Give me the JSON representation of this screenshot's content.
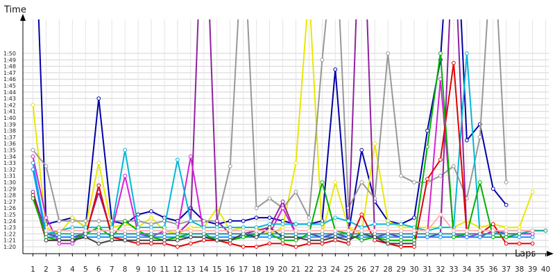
{
  "chart_data": {
    "type": "line",
    "title": "",
    "xlabel": "Laps",
    "ylabel": "Time",
    "x": [
      1,
      2,
      3,
      4,
      5,
      6,
      7,
      8,
      9,
      10,
      11,
      12,
      13,
      14,
      15,
      16,
      17,
      18,
      19,
      20,
      21,
      22,
      23,
      24,
      25,
      26,
      27,
      28,
      29,
      30,
      31,
      32,
      33,
      34,
      35,
      36,
      37,
      38,
      39,
      40
    ],
    "x_tick_labels": [
      "1",
      "2",
      "3",
      "4",
      "5",
      "6",
      "7",
      "8",
      "9",
      "10",
      "11",
      "12",
      "13",
      "14",
      "15",
      "16",
      "17",
      "18",
      "19",
      "20",
      "21",
      "22",
      "23",
      "24",
      "25",
      "26",
      "27",
      "28",
      "29",
      "30",
      "31",
      "32",
      "33",
      "34",
      "35",
      "36",
      "37",
      "38",
      "39",
      "40"
    ],
    "y_tick_labels": [
      "1:20",
      "1:21",
      "1:22",
      "1:23",
      "1:24",
      "1:25",
      "1:26",
      "1:27",
      "1:28",
      "1:29",
      "1:30",
      "1:31",
      "1:32",
      "1:33",
      "1:34",
      "1:35",
      "1:36",
      "1:37",
      "1:38",
      "1:39",
      "1:40",
      "1:41",
      "1:42",
      "1:43",
      "1:44",
      "1:45",
      "1:46",
      "1:47",
      "1:48",
      "1:49",
      "1:50"
    ],
    "y_tick_values": [
      80,
      81,
      82,
      83,
      84,
      85,
      86,
      87,
      88,
      89,
      90,
      91,
      92,
      93,
      94,
      95,
      96,
      97,
      98,
      99,
      100,
      101,
      102,
      103,
      104,
      105,
      106,
      107,
      108,
      109,
      110
    ],
    "xlim": [
      1,
      40
    ],
    "ylim": [
      78.5,
      113
    ],
    "grid": true,
    "series": [
      {
        "color": "#0000a8",
        "values": [
          140,
          83.5,
          84,
          84.5,
          83,
          103,
          84,
          83.5,
          85,
          85.5,
          84.5,
          84,
          86,
          84,
          83.5,
          84,
          84,
          84.5,
          84.5,
          84,
          83.5,
          83.5,
          84,
          107.5,
          82,
          95,
          87,
          84,
          83.5,
          84.5,
          98,
          109,
          140,
          96.5,
          99,
          89,
          86.5,
          null,
          null,
          null
        ]
      },
      {
        "color": "#e8e800",
        "values": [
          102,
          83,
          82,
          84.5,
          83,
          93,
          83,
          83.5,
          83,
          84.5,
          82.5,
          82,
          83,
          83,
          86,
          82.5,
          83,
          83,
          82,
          83,
          93,
          120,
          82,
          90,
          83,
          82,
          96,
          84,
          83,
          83,
          83,
          83,
          83,
          84,
          83,
          83.5,
          83,
          83,
          88.5,
          null
        ]
      },
      {
        "color": "#989898",
        "values": [
          95,
          92.5,
          84,
          84,
          84,
          84,
          84,
          84,
          84,
          83.5,
          84,
          83.5,
          84,
          84,
          84,
          92.5,
          130,
          86,
          87.5,
          86,
          88.5,
          84.5,
          109,
          130,
          86,
          90,
          87.5,
          110,
          91,
          90,
          90,
          91,
          92.5,
          87.5,
          97,
          130,
          90,
          null,
          null,
          null
        ]
      },
      {
        "color": "#9020a0",
        "values": [
          88.5,
          82,
          81.5,
          81.5,
          82,
          88.5,
          82,
          82,
          82,
          82,
          82,
          82,
          84,
          140,
          84,
          82,
          82,
          82.5,
          83,
          87,
          82,
          82,
          81.5,
          82,
          81.5,
          140,
          81.5,
          82,
          81.5,
          81.5,
          81.5,
          82,
          130,
          81.5,
          81.5,
          82.5,
          82,
          82,
          82,
          null
        ]
      },
      {
        "color": "#d820d8",
        "values": [
          94,
          84.5,
          80.5,
          80.5,
          82.5,
          82.5,
          82.5,
          91,
          82,
          81.5,
          82.5,
          82.5,
          94,
          82,
          82,
          82,
          82,
          82,
          82,
          86,
          82,
          82,
          82,
          82,
          82,
          82,
          82,
          82,
          82,
          82,
          82,
          106,
          82,
          81.5,
          82,
          82,
          82,
          82,
          82,
          null
        ]
      },
      {
        "color": "#00b8d8",
        "values": [
          93,
          82,
          82.5,
          83,
          83,
          83,
          83,
          95,
          83,
          83,
          83,
          93.5,
          84,
          83,
          83,
          83,
          83,
          83,
          83.5,
          83.5,
          83.5,
          83.5,
          83.5,
          84.5,
          84,
          83,
          83.5,
          83.5,
          83.5,
          83,
          82.5,
          83,
          83,
          110,
          82,
          82,
          82.5,
          82.5,
          82.5,
          null
        ]
      },
      {
        "color": "#1090ff",
        "values": [
          92,
          81.5,
          81.5,
          81.5,
          81.5,
          81.5,
          81.5,
          81.5,
          81.5,
          81.5,
          81.5,
          81.5,
          81.5,
          81.5,
          81.5,
          81.5,
          81.5,
          81.5,
          81.5,
          81.5,
          81.5,
          81.5,
          81.5,
          81.5,
          81.5,
          81.5,
          81.5,
          81.5,
          81.5,
          81.5,
          81.5,
          81.5,
          81.5,
          81.5,
          81.5,
          81.5,
          81.5,
          81.5,
          81.5,
          null
        ]
      },
      {
        "color": "#e00000",
        "values": [
          88,
          81,
          81,
          81,
          81.5,
          89.5,
          81.5,
          81,
          80.5,
          80.5,
          80.5,
          80,
          80.5,
          81,
          81,
          80.5,
          80,
          80,
          80.5,
          80.5,
          80,
          80.5,
          80.5,
          81,
          80.5,
          85,
          81,
          80.5,
          80,
          80,
          90.5,
          93.5,
          108.5,
          82,
          82,
          83.5,
          80.5,
          80.5,
          80.5,
          null
        ]
      },
      {
        "color": "#00b000",
        "values": [
          87.5,
          81.5,
          81,
          81,
          82,
          83,
          81.5,
          84,
          82.5,
          81.5,
          81,
          81.5,
          82,
          82,
          81,
          81,
          81.5,
          82,
          82,
          81,
          81,
          82,
          90,
          82.5,
          82,
          81,
          81.5,
          81,
          81,
          81,
          95.5,
          110,
          81.5,
          82,
          90,
          81.5,
          81.5,
          82,
          82.5,
          82.5
        ]
      },
      {
        "color": "#404040",
        "values": [
          null,
          81,
          81,
          81,
          81.5,
          80.5,
          81,
          81,
          81,
          81,
          81,
          81,
          81.5,
          81.5,
          81,
          81,
          82,
          81.5,
          83,
          81.5,
          81.5,
          81,
          81,
          81.5,
          81,
          82,
          81.5,
          80.5,
          80.5,
          80.5,
          null,
          null,
          null,
          null,
          null,
          null,
          null,
          null,
          null,
          null
        ]
      },
      {
        "color": "#20a0a0",
        "values": [
          null,
          82,
          82,
          82,
          82,
          82,
          82,
          82,
          82,
          82,
          82,
          82,
          82,
          82,
          82,
          82,
          82,
          82,
          82,
          82,
          82,
          82,
          82,
          82,
          82,
          82,
          82,
          82,
          82,
          82,
          82,
          82,
          82,
          82,
          82,
          82,
          82,
          82,
          82.5,
          82.5
        ]
      },
      {
        "color": "#ffb0b0",
        "values": [
          null,
          82.5,
          82.5,
          82.5,
          82.5,
          82.5,
          82.5,
          82.5,
          82.5,
          82.5,
          82.5,
          82.5,
          82.5,
          82.5,
          82.5,
          82.5,
          82.5,
          82.5,
          82.5,
          82.5,
          82.5,
          82.5,
          82.5,
          82.5,
          82.5,
          82.5,
          82.5,
          82.5,
          82.5,
          82.5,
          82.5,
          85,
          82.5,
          82.5,
          82.5,
          82.5,
          82.5,
          82.5,
          82.5,
          null
        ]
      }
    ]
  }
}
